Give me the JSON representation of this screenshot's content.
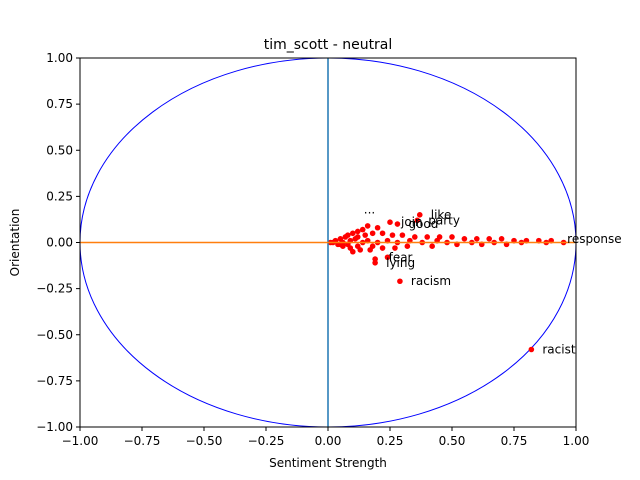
{
  "chart_data": {
    "type": "scatter",
    "title": "tim_scott - neutral",
    "xlabel": "Sentiment Strength",
    "ylabel": "Orientation",
    "xlim": [
      -1.0,
      1.0
    ],
    "ylim": [
      -1.0,
      1.0
    ],
    "xticks": [
      -1.0,
      -0.75,
      -0.5,
      -0.25,
      0.0,
      0.25,
      0.5,
      0.75,
      1.0
    ],
    "yticks": [
      -1.0,
      -0.75,
      -0.5,
      -0.25,
      0.0,
      0.25,
      0.5,
      0.75,
      1.0
    ],
    "xtick_labels": [
      "−1.00",
      "−0.75",
      "−0.50",
      "−0.25",
      "0.00",
      "0.25",
      "0.50",
      "0.75",
      "1.00"
    ],
    "ytick_labels": [
      "−1.00",
      "−0.75",
      "−0.50",
      "−0.25",
      "0.00",
      "0.25",
      "0.50",
      "0.75",
      "1.00"
    ],
    "grid": false,
    "unit_circle": true,
    "colors": {
      "points": "#ff0000",
      "circle": "#0000ff",
      "vertical_line": "#1f77b4",
      "horizontal_line": "#ff7f0e",
      "spine": "#000000"
    },
    "labeled_points": [
      {
        "label": "racist",
        "x": 0.82,
        "y": -0.58
      },
      {
        "label": "racism",
        "x": 0.29,
        "y": -0.21
      },
      {
        "label": "lying",
        "x": 0.19,
        "y": -0.11
      },
      {
        "label": "fear",
        "x": 0.2,
        "y": -0.08
      },
      {
        "label": "like",
        "x": 0.37,
        "y": 0.15
      },
      {
        "label": "party",
        "x": 0.36,
        "y": 0.12
      },
      {
        "label": "...",
        "x": 0.1,
        "y": 0.18
      },
      {
        "label": "join",
        "x": 0.25,
        "y": 0.11
      },
      {
        "label": "good",
        "x": 0.28,
        "y": 0.1
      },
      {
        "label": "response",
        "x": 0.92,
        "y": 0.02
      }
    ],
    "points": [
      {
        "x": 0.82,
        "y": -0.58
      },
      {
        "x": 0.29,
        "y": -0.21
      },
      {
        "x": 0.19,
        "y": -0.11
      },
      {
        "x": 0.19,
        "y": -0.09
      },
      {
        "x": 0.24,
        "y": -0.08
      },
      {
        "x": 0.37,
        "y": 0.15
      },
      {
        "x": 0.36,
        "y": 0.12
      },
      {
        "x": 0.25,
        "y": 0.11
      },
      {
        "x": 0.28,
        "y": 0.1
      },
      {
        "x": 0.16,
        "y": 0.09
      },
      {
        "x": 0.2,
        "y": 0.08
      },
      {
        "x": 0.14,
        "y": 0.07
      },
      {
        "x": 0.12,
        "y": 0.06
      },
      {
        "x": 0.1,
        "y": 0.05
      },
      {
        "x": 0.18,
        "y": 0.05
      },
      {
        "x": 0.22,
        "y": 0.05
      },
      {
        "x": 0.26,
        "y": 0.04
      },
      {
        "x": 0.3,
        "y": 0.04
      },
      {
        "x": 0.08,
        "y": 0.04
      },
      {
        "x": 0.15,
        "y": 0.04
      },
      {
        "x": 0.35,
        "y": 0.03
      },
      {
        "x": 0.4,
        "y": 0.03
      },
      {
        "x": 0.45,
        "y": 0.03
      },
      {
        "x": 0.5,
        "y": 0.03
      },
      {
        "x": 0.55,
        "y": 0.02
      },
      {
        "x": 0.6,
        "y": 0.02
      },
      {
        "x": 0.65,
        "y": 0.02
      },
      {
        "x": 0.7,
        "y": 0.02
      },
      {
        "x": 0.75,
        "y": 0.01
      },
      {
        "x": 0.8,
        "y": 0.01
      },
      {
        "x": 0.85,
        "y": 0.01
      },
      {
        "x": 0.9,
        "y": 0.01
      },
      {
        "x": 0.95,
        "y": 0.0
      },
      {
        "x": 0.88,
        "y": 0.0
      },
      {
        "x": 0.78,
        "y": 0.0
      },
      {
        "x": 0.72,
        "y": -0.01
      },
      {
        "x": 0.62,
        "y": -0.01
      },
      {
        "x": 0.52,
        "y": -0.01
      },
      {
        "x": 0.42,
        "y": -0.02
      },
      {
        "x": 0.32,
        "y": -0.02
      },
      {
        "x": 0.27,
        "y": -0.03
      },
      {
        "x": 0.22,
        "y": -0.03
      },
      {
        "x": 0.17,
        "y": -0.04
      },
      {
        "x": 0.13,
        "y": -0.04
      },
      {
        "x": 0.09,
        "y": -0.03
      },
      {
        "x": 0.06,
        "y": -0.02
      },
      {
        "x": 0.04,
        "y": -0.01
      },
      {
        "x": 0.02,
        "y": 0.0
      },
      {
        "x": 0.03,
        "y": 0.01
      },
      {
        "x": 0.05,
        "y": 0.02
      },
      {
        "x": 0.07,
        "y": 0.03
      },
      {
        "x": 0.11,
        "y": 0.02
      },
      {
        "x": 0.06,
        "y": 0.0
      },
      {
        "x": 0.08,
        "y": -0.01
      },
      {
        "x": 0.1,
        "y": -0.05
      },
      {
        "x": 0.12,
        "y": -0.02
      },
      {
        "x": 0.14,
        "y": 0.0
      },
      {
        "x": 0.16,
        "y": 0.01
      },
      {
        "x": 0.2,
        "y": 0.0
      },
      {
        "x": 0.24,
        "y": 0.01
      },
      {
        "x": 0.28,
        "y": 0.0
      },
      {
        "x": 0.33,
        "y": 0.01
      },
      {
        "x": 0.38,
        "y": 0.0
      },
      {
        "x": 0.44,
        "y": 0.01
      },
      {
        "x": 0.48,
        "y": 0.0
      },
      {
        "x": 0.58,
        "y": 0.0
      },
      {
        "x": 0.67,
        "y": 0.0
      },
      {
        "x": 0.12,
        "y": 0.03
      },
      {
        "x": 0.18,
        "y": -0.02
      },
      {
        "x": 0.09,
        "y": 0.01
      },
      {
        "x": 0.05,
        "y": -0.01
      },
      {
        "x": 0.01,
        "y": 0.0
      }
    ]
  }
}
